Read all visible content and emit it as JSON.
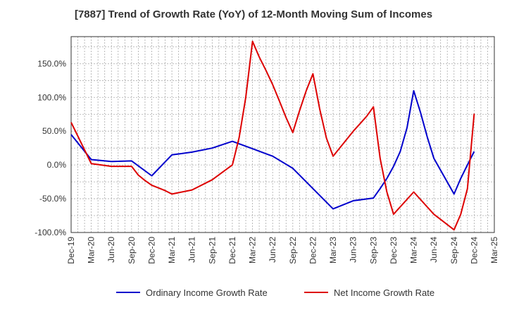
{
  "chart_data": {
    "type": "line",
    "title": "[7887]  Trend of Growth Rate (YoY) of 12-Month Moving Sum of Incomes",
    "xlabel": "",
    "ylabel": "",
    "x_ticks": [
      "Dec-19",
      "Mar-20",
      "Jun-20",
      "Sep-20",
      "Dec-20",
      "Mar-21",
      "Jun-21",
      "Sep-21",
      "Dec-21",
      "Mar-22",
      "Jun-22",
      "Sep-22",
      "Dec-22",
      "Mar-23",
      "Jun-23",
      "Sep-23",
      "Dec-23",
      "Mar-24",
      "Jun-24",
      "Sep-24",
      "Dec-24",
      "Mar-25"
    ],
    "y_ticks": [
      "-100.0%",
      "-50.0%",
      "0.0%",
      "50.0%",
      "100.0%",
      "150.0%"
    ],
    "y_tick_values": [
      -100,
      -50,
      0,
      50,
      100,
      150
    ],
    "ylim": [
      -100,
      190
    ],
    "grid": true,
    "legend_position": "bottom",
    "series": [
      {
        "name": "Ordinary Income Growth Rate",
        "color": "#0000cc",
        "points": [
          [
            "Dec-19",
            45
          ],
          [
            "Mar-20",
            8
          ],
          [
            "Jun-20",
            5
          ],
          [
            "Sep-20",
            6
          ],
          [
            "Dec-20",
            -16
          ],
          [
            "Mar-21",
            15
          ],
          [
            "Jun-21",
            19
          ],
          [
            "Sep-21",
            25
          ],
          [
            "Dec-21",
            35
          ],
          [
            "Mar-22",
            24
          ],
          [
            "Jun-22",
            13
          ],
          [
            "Sep-22",
            -5
          ],
          [
            "Dec-22",
            -35
          ],
          [
            "Mar-23",
            -65
          ],
          [
            "Jun-23",
            -53
          ],
          [
            "Sep-23",
            -49
          ],
          [
            "Oct-23",
            -35
          ],
          [
            "Nov-23",
            -20
          ],
          [
            "Dec-23",
            -2
          ],
          [
            "Jan-24",
            20
          ],
          [
            "Feb-24",
            55
          ],
          [
            "Mar-24",
            110
          ],
          [
            "Apr-24",
            78
          ],
          [
            "May-24",
            42
          ],
          [
            "Jun-24",
            10
          ],
          [
            "Sep-24",
            -43
          ],
          [
            "Oct-24",
            -20
          ],
          [
            "Nov-24",
            0
          ],
          [
            "Dec-24",
            20
          ]
        ]
      },
      {
        "name": "Net Income Growth Rate",
        "color": "#dd0000",
        "points": [
          [
            "Dec-19",
            63
          ],
          [
            "Mar-20",
            2
          ],
          [
            "Jun-20",
            -2
          ],
          [
            "Sep-20",
            -2
          ],
          [
            "Oct-20",
            -15
          ],
          [
            "Nov-20",
            -23
          ],
          [
            "Dec-20",
            -30
          ],
          [
            "Jan-21",
            -34
          ],
          [
            "Feb-21",
            -38
          ],
          [
            "Mar-21",
            -43
          ],
          [
            "Jun-21",
            -37
          ],
          [
            "Sep-21",
            -22
          ],
          [
            "Dec-21",
            0
          ],
          [
            "Jan-22",
            40
          ],
          [
            "Feb-22",
            100
          ],
          [
            "Mar-22",
            183
          ],
          [
            "Apr-22",
            160
          ],
          [
            "May-22",
            140
          ],
          [
            "Jun-22",
            119
          ],
          [
            "Jul-22",
            95
          ],
          [
            "Aug-22",
            70
          ],
          [
            "Sep-22",
            48
          ],
          [
            "Oct-22",
            80
          ],
          [
            "Nov-22",
            110
          ],
          [
            "Dec-22",
            135
          ],
          [
            "Jan-23",
            83
          ],
          [
            "Feb-23",
            40
          ],
          [
            "Mar-23",
            13
          ],
          [
            "Jun-23",
            50
          ],
          [
            "Aug-23",
            72
          ],
          [
            "Sep-23",
            86
          ],
          [
            "Oct-23",
            10
          ],
          [
            "Nov-23",
            -40
          ],
          [
            "Dec-23",
            -73
          ],
          [
            "Mar-24",
            -40
          ],
          [
            "Jun-24",
            -73
          ],
          [
            "Sep-24",
            -96
          ],
          [
            "Oct-24",
            -73
          ],
          [
            "Nov-24",
            -35
          ],
          [
            "Dec-24",
            76
          ]
        ]
      }
    ]
  }
}
